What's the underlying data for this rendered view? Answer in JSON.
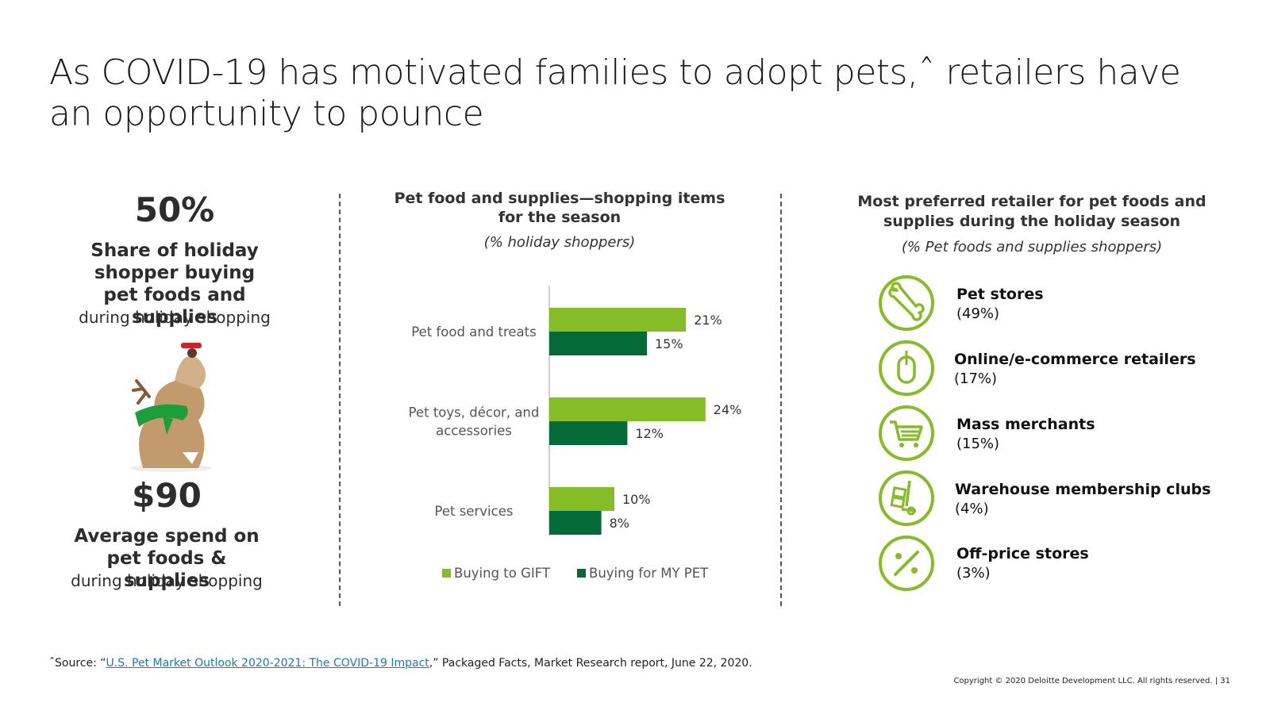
{
  "title": "As COVID-19 has motivated families to adopt pets,ˆ retailers have an opportunity to pounce",
  "left": {
    "stat1_value": "50%",
    "stat1_label": "Share of holiday shopper buying pet foods and supplies",
    "stat1_sub": "during holiday shopping",
    "stat2_value": "$90",
    "stat2_label": "Average spend on pet foods & supplies",
    "stat2_sub": "during holiday shopping"
  },
  "chart_data": {
    "type": "bar",
    "orientation": "horizontal",
    "title": "Pet food and supplies—shopping items for the season",
    "subtitle": "(% holiday shoppers)",
    "categories": [
      "Pet food and treats",
      "Pet toys, décor, and accessories",
      "Pet services"
    ],
    "series": [
      {
        "name": "Buying to GIFT",
        "values": [
          21,
          24,
          10
        ],
        "labels": [
          "21%",
          "24%",
          "10%"
        ],
        "color": "#86bc25"
      },
      {
        "name": "Buying for MY PET",
        "values": [
          15,
          12,
          8
        ],
        "labels": [
          "15%",
          "12%",
          "8%"
        ],
        "color": "#046a38"
      }
    ],
    "xlim": [
      0,
      30
    ],
    "grid": false,
    "legend": "bottom"
  },
  "retailers": {
    "title": "Most preferred retailer for pet foods and supplies during the holiday season",
    "subtitle": "(% Pet foods and supplies shoppers)",
    "icon_color": "#86bc25",
    "items": [
      {
        "name": "Pet stores",
        "pct": "(49%)",
        "icon": "bone-icon"
      },
      {
        "name": "Online/e-commerce retailers",
        "pct": "(17%)",
        "icon": "mouse-icon"
      },
      {
        "name": "Mass merchants",
        "pct": "(15%)",
        "icon": "shopping-cart-icon"
      },
      {
        "name": "Warehouse membership clubs",
        "pct": "(4%)",
        "icon": "hand-truck-icon"
      },
      {
        "name": "Off-price stores",
        "pct": "(3%)",
        "icon": "percent-icon"
      }
    ]
  },
  "footnote": {
    "prefix": "ˆSource: “",
    "link": "U.S. Pet Market Outlook 2020-2021: The COVID-19 Impact",
    "suffix": ",” Packaged Facts,  Market Research report, June 22, 2020."
  },
  "copyright": "Copyright © 2020 Deloitte Development LLC. All rights reserved.   |    31"
}
